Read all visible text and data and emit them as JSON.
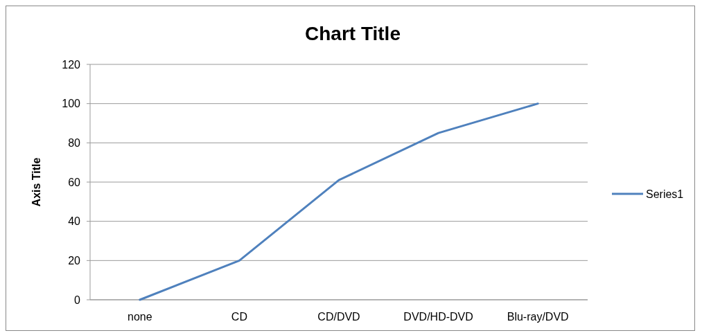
{
  "chart_data": {
    "type": "line",
    "title": "Chart Title",
    "ylabel": "Axis Title",
    "categories": [
      "none",
      "CD",
      "CD/DVD",
      "DVD/HD-DVD",
      "Blu-ray/DVD"
    ],
    "series": [
      {
        "name": "Series1",
        "color": "#4f81bd",
        "values": [
          0,
          20,
          61,
          85,
          100
        ]
      }
    ],
    "ylim": [
      0,
      120
    ],
    "yticks": [
      0,
      20,
      40,
      60,
      80,
      100,
      120
    ],
    "grid": "y",
    "legend": "right",
    "marker": "none",
    "line_style": "solid"
  }
}
